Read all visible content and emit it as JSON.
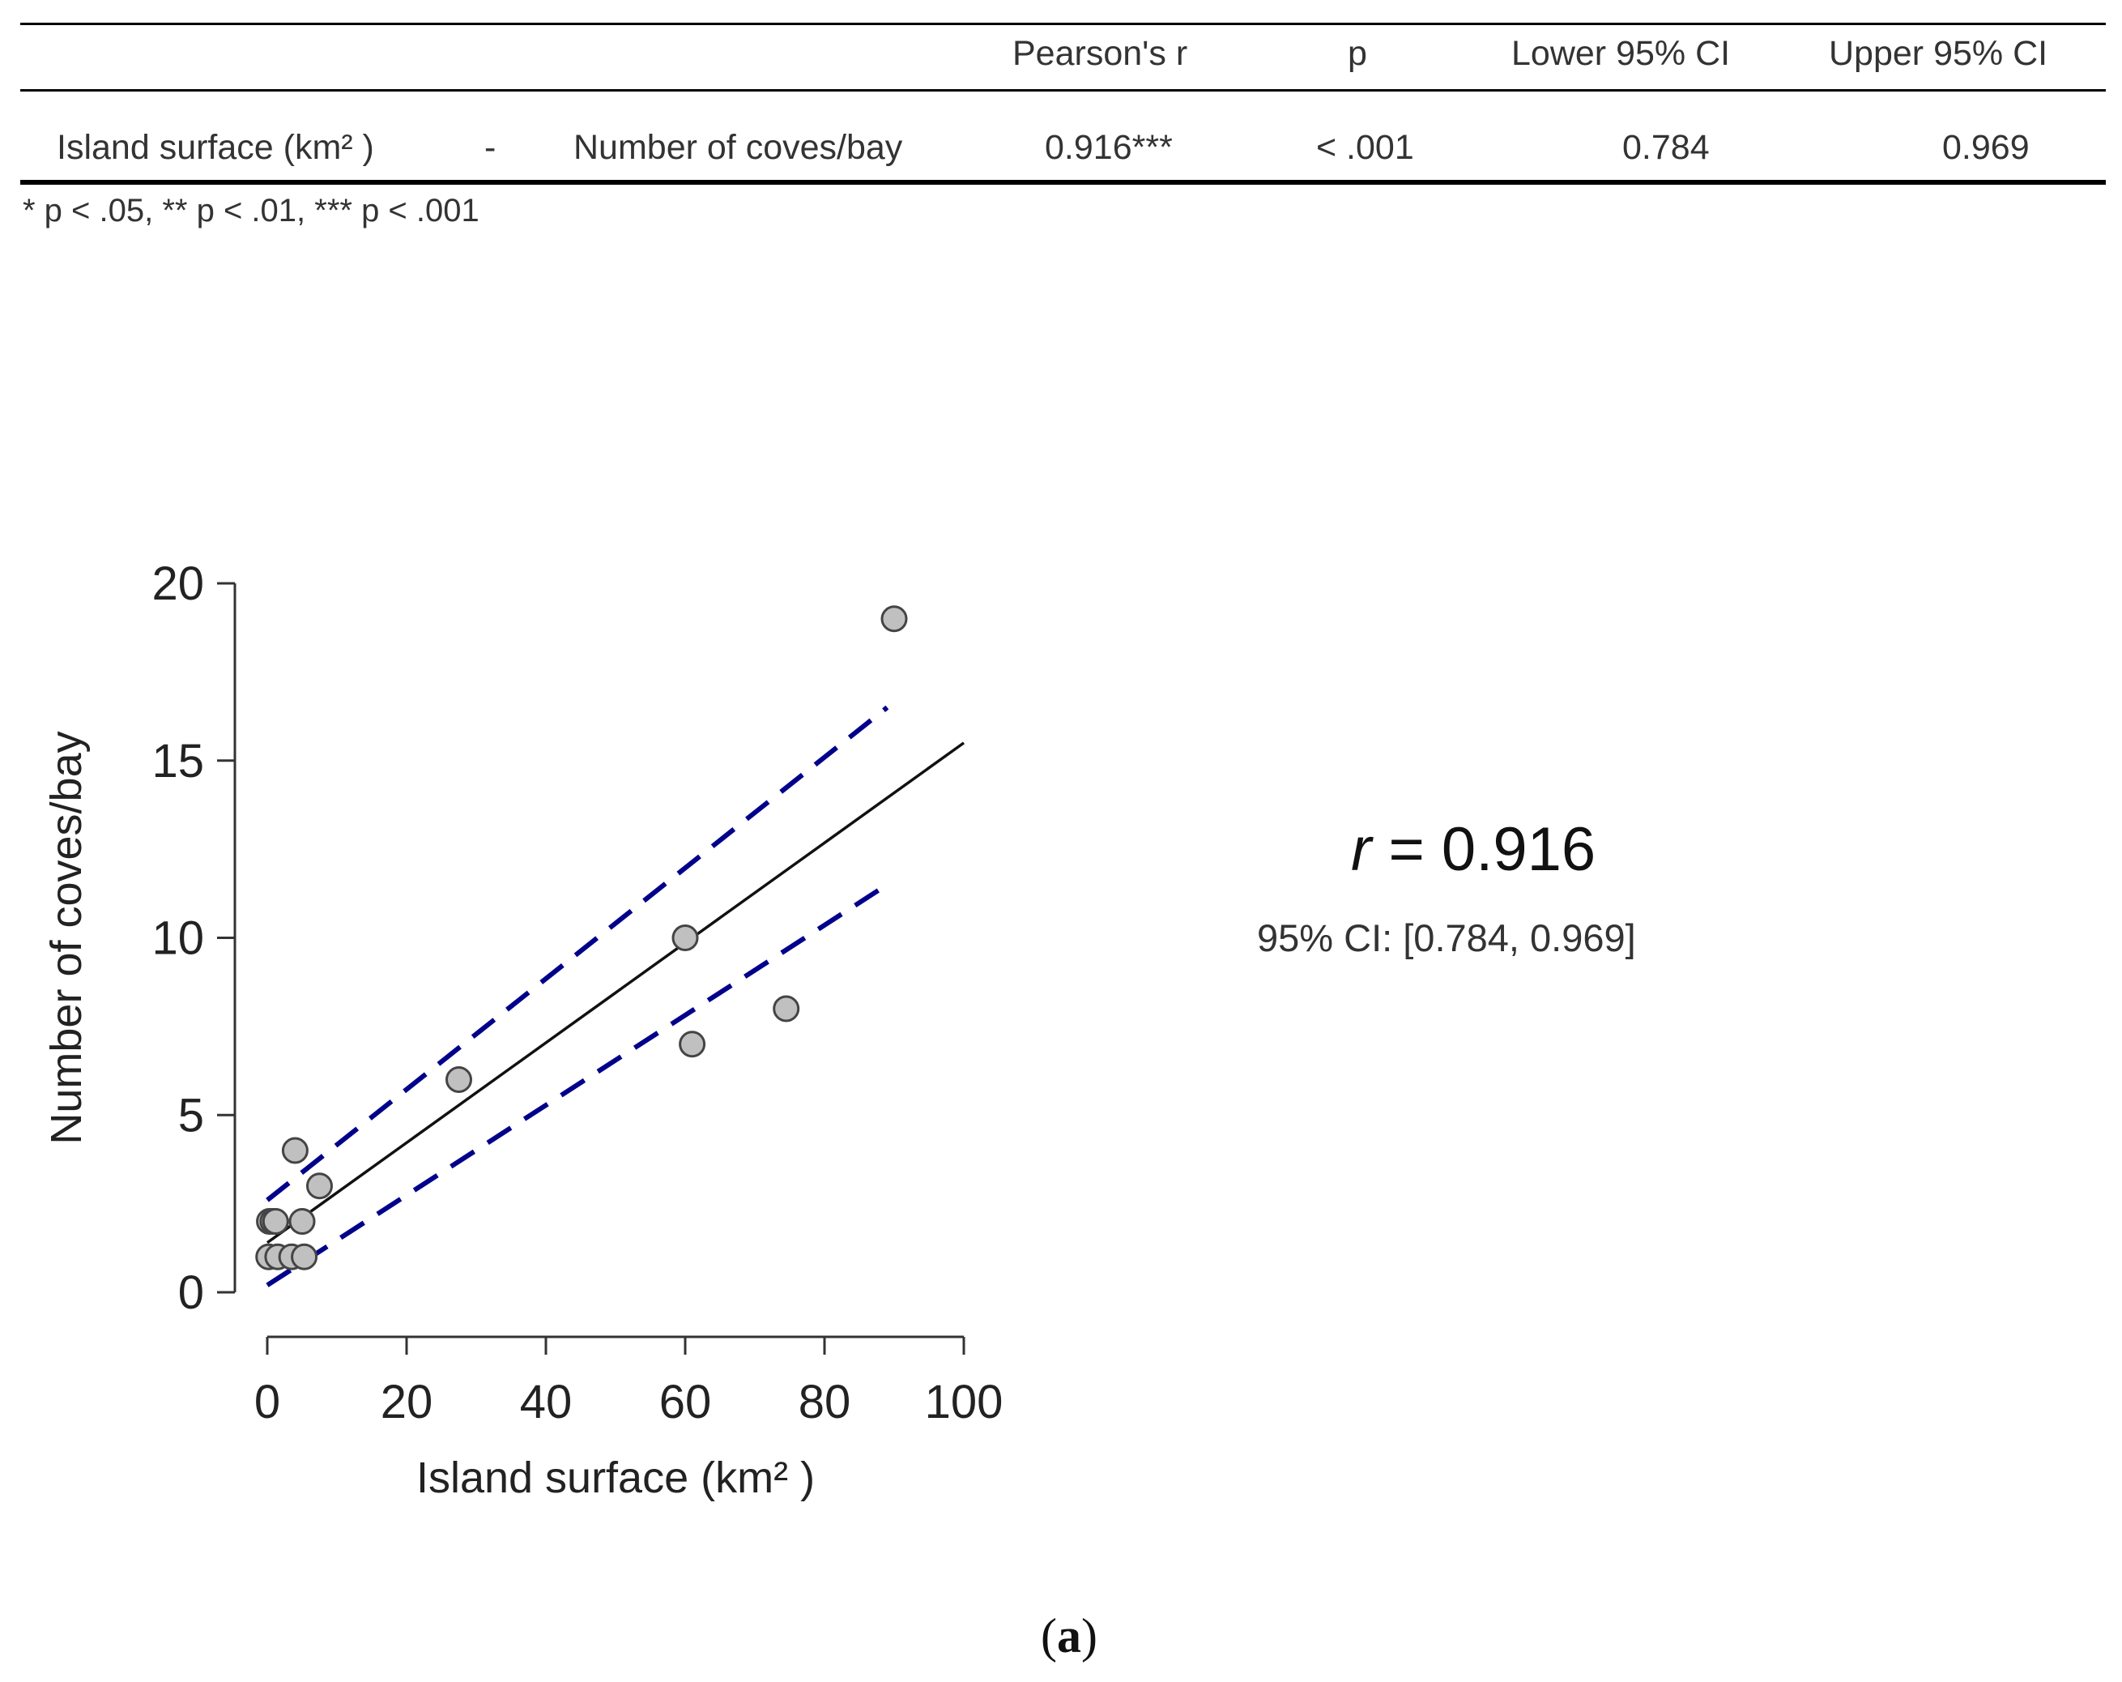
{
  "table": {
    "headers": [
      "Pearson's r",
      "p",
      "Lower 95% CI",
      "Upper 95% CI"
    ],
    "row": {
      "var1": "Island surface (km² )",
      "dash": "-",
      "var2": "Number of coves/bay",
      "r": "0.916***",
      "p": "< .001",
      "lower": "0.784",
      "upper": "0.969"
    },
    "footnote": "* p < .05, ** p < .01, *** p < .001"
  },
  "annotation": {
    "r_symbol": "r",
    "r_value": "= 0.916",
    "ci": "95% CI: [0.784, 0.969]"
  },
  "caption": {
    "open": "(",
    "letter": "a",
    "close": ")"
  },
  "chart_data": {
    "type": "scatter",
    "xlabel": "Island surface (km² )",
    "ylabel": "Number of coves/bay",
    "xlim": [
      0,
      100
    ],
    "ylim": [
      0,
      20
    ],
    "xticks": [
      0,
      20,
      40,
      60,
      80,
      100
    ],
    "yticks": [
      0,
      5,
      10,
      15,
      20
    ],
    "points": [
      {
        "x": 0.2,
        "y": 1
      },
      {
        "x": 0.3,
        "y": 2
      },
      {
        "x": 0.8,
        "y": 2
      },
      {
        "x": 1.2,
        "y": 2
      },
      {
        "x": 1.5,
        "y": 1
      },
      {
        "x": 3.5,
        "y": 1
      },
      {
        "x": 4,
        "y": 4
      },
      {
        "x": 5,
        "y": 2
      },
      {
        "x": 5.3,
        "y": 1
      },
      {
        "x": 7.5,
        "y": 3
      },
      {
        "x": 27.5,
        "y": 6
      },
      {
        "x": 60,
        "y": 10
      },
      {
        "x": 61,
        "y": 7
      },
      {
        "x": 74.5,
        "y": 8
      },
      {
        "x": 90,
        "y": 19
      }
    ],
    "regression": {
      "x": [
        0,
        100
      ],
      "y": [
        1.4,
        15.5
      ]
    },
    "ci_upper": {
      "x": [
        0,
        89
      ],
      "y": [
        2.6,
        16.5
      ]
    },
    "ci_lower": {
      "x": [
        0,
        89
      ],
      "y": [
        0.2,
        11.5
      ]
    },
    "colors": {
      "points_fill": "#c0c0c0",
      "points_stroke": "#444444",
      "fit": "#111111",
      "ci": "#00008b"
    }
  }
}
